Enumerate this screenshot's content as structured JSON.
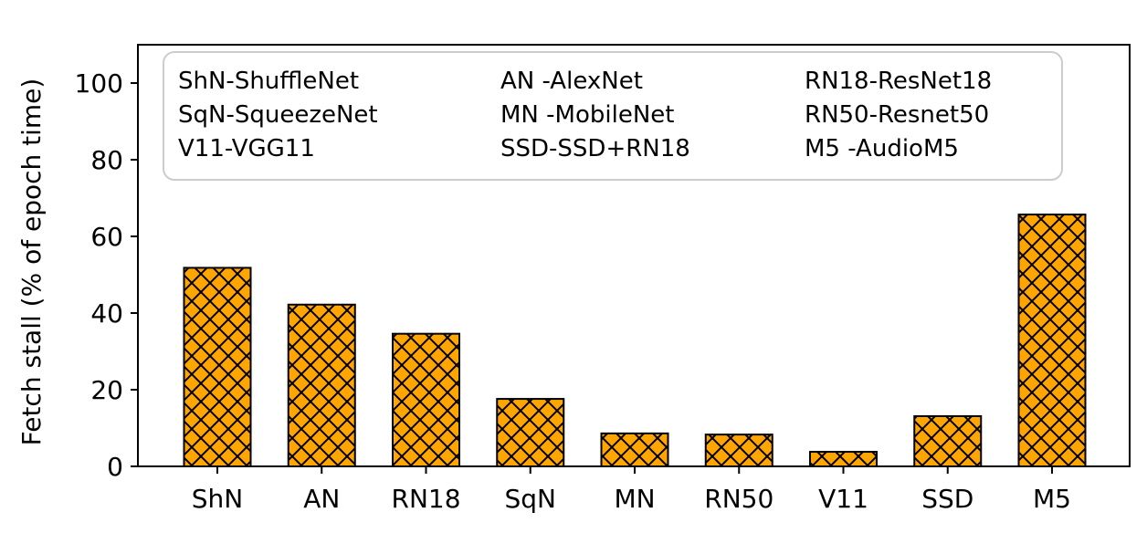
{
  "chart_data": {
    "type": "bar",
    "categories": [
      "ShN",
      "AN",
      "RN18",
      "SqN",
      "MN",
      "RN50",
      "V11",
      "SSD",
      "M5"
    ],
    "values": [
      51.8,
      42.2,
      34.6,
      17.6,
      8.6,
      8.3,
      3.8,
      13.1,
      65.7
    ],
    "title": "",
    "xlabel": "",
    "ylabel": "Fetch stall (% of epoch time)",
    "ylim": [
      0,
      110
    ],
    "yticks": [
      0,
      20,
      40,
      60,
      80,
      100
    ],
    "bar_color": "#FFA500",
    "bar_edge_color": "#000000",
    "hatch": "x",
    "grid": false,
    "legend_placement": "upper-left",
    "legend_rows": [
      [
        "ShN-ShuffleNet",
        " AN -AlexNet",
        "RN18-ResNet18"
      ],
      [
        "SqN-SqueezeNet",
        "MN -MobileNet",
        "RN50-Resnet50"
      ],
      [
        "V11-VGG11",
        "SSD-SSD+RN18",
        " M5  -AudioM5"
      ]
    ]
  }
}
